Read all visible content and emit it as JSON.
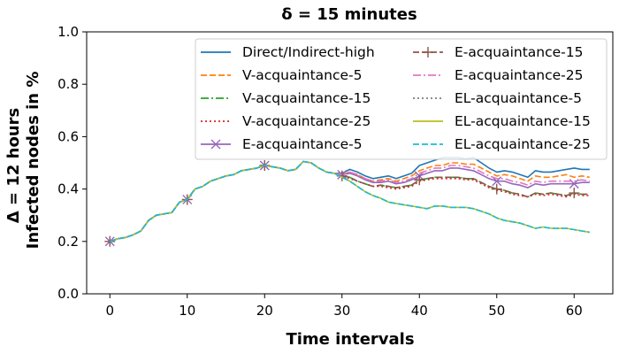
{
  "chart_data": {
    "type": "line",
    "title": "δ = 15 minutes",
    "xlabel": "Time intervals",
    "ylabel_line1": "Δ = 12 hours",
    "ylabel_line2": "Infected nodes in %",
    "xlim": [
      -3,
      65
    ],
    "ylim": [
      0,
      1.0
    ],
    "xticks": [
      0,
      10,
      20,
      30,
      40,
      50,
      60
    ],
    "yticks": [
      0.0,
      0.2,
      0.4,
      0.6,
      0.8,
      1.0
    ],
    "ytick_labels": [
      "0.0",
      "0.2",
      "0.4",
      "0.6",
      "0.8",
      "1.0"
    ],
    "grid": false,
    "legend_position": "top-right",
    "x": [
      0,
      1,
      2,
      3,
      4,
      5,
      6,
      7,
      8,
      9,
      10,
      11,
      12,
      13,
      14,
      15,
      16,
      17,
      18,
      19,
      20,
      21,
      22,
      23,
      24,
      25,
      26,
      27,
      28,
      29,
      30,
      31,
      32,
      33,
      34,
      35,
      36,
      37,
      38,
      39,
      40,
      41,
      42,
      43,
      44,
      45,
      46,
      47,
      48,
      49,
      50,
      51,
      52,
      53,
      54,
      55,
      56,
      57,
      58,
      59,
      60,
      61,
      62
    ],
    "series": [
      {
        "name": "Direct/Indirect-high",
        "color": "#1f77b4",
        "dash": "solid",
        "marker": "none",
        "values": [
          0.2,
          0.21,
          0.215,
          0.225,
          0.24,
          0.28,
          0.3,
          0.305,
          0.31,
          0.35,
          0.36,
          0.4,
          0.41,
          0.43,
          0.44,
          0.45,
          0.455,
          0.47,
          0.475,
          0.48,
          0.49,
          0.485,
          0.48,
          0.47,
          0.475,
          0.505,
          0.5,
          0.48,
          0.465,
          0.46,
          0.46,
          0.475,
          0.465,
          0.45,
          0.44,
          0.445,
          0.45,
          0.44,
          0.45,
          0.46,
          0.49,
          0.5,
          0.51,
          0.52,
          0.52,
          0.52,
          0.515,
          0.52,
          0.5,
          0.48,
          0.465,
          0.47,
          0.465,
          0.455,
          0.445,
          0.47,
          0.465,
          0.465,
          0.47,
          0.475,
          0.48,
          0.475,
          0.475
        ]
      },
      {
        "name": "V-acquaintance-5",
        "color": "#ff7f0e",
        "dash": "dashed",
        "marker": "none",
        "values": [
          0.2,
          0.21,
          0.215,
          0.225,
          0.24,
          0.28,
          0.3,
          0.305,
          0.31,
          0.35,
          0.36,
          0.4,
          0.41,
          0.43,
          0.44,
          0.45,
          0.455,
          0.47,
          0.475,
          0.48,
          0.49,
          0.485,
          0.48,
          0.47,
          0.475,
          0.505,
          0.5,
          0.48,
          0.465,
          0.46,
          0.455,
          0.465,
          0.455,
          0.44,
          0.43,
          0.435,
          0.44,
          0.43,
          0.44,
          0.45,
          0.47,
          0.48,
          0.49,
          0.49,
          0.5,
          0.5,
          0.495,
          0.495,
          0.48,
          0.465,
          0.45,
          0.455,
          0.45,
          0.44,
          0.43,
          0.45,
          0.445,
          0.445,
          0.45,
          0.455,
          0.445,
          0.45,
          0.445
        ]
      },
      {
        "name": "V-acquaintance-15",
        "color": "#2ca02c",
        "dash": "dashdot",
        "marker": "none",
        "values": [
          0.2,
          0.21,
          0.215,
          0.225,
          0.24,
          0.28,
          0.3,
          0.305,
          0.31,
          0.35,
          0.36,
          0.4,
          0.41,
          0.43,
          0.44,
          0.45,
          0.455,
          0.47,
          0.475,
          0.48,
          0.49,
          0.485,
          0.48,
          0.47,
          0.475,
          0.505,
          0.5,
          0.48,
          0.465,
          0.46,
          0.45,
          0.445,
          0.43,
          0.42,
          0.41,
          0.415,
          0.41,
          0.405,
          0.41,
          0.415,
          0.435,
          0.44,
          0.445,
          0.445,
          0.445,
          0.445,
          0.44,
          0.44,
          0.425,
          0.41,
          0.4,
          0.395,
          0.385,
          0.38,
          0.37,
          0.385,
          0.38,
          0.385,
          0.38,
          0.375,
          0.385,
          0.38,
          0.38
        ]
      },
      {
        "name": "V-acquaintance-25",
        "color": "#d62728",
        "dash": "dotted",
        "marker": "none",
        "values": [
          0.2,
          0.21,
          0.215,
          0.225,
          0.24,
          0.28,
          0.3,
          0.305,
          0.31,
          0.35,
          0.36,
          0.4,
          0.41,
          0.43,
          0.44,
          0.45,
          0.455,
          0.47,
          0.475,
          0.48,
          0.49,
          0.485,
          0.48,
          0.47,
          0.475,
          0.505,
          0.5,
          0.48,
          0.465,
          0.46,
          0.45,
          0.44,
          0.43,
          0.42,
          0.41,
          0.41,
          0.405,
          0.4,
          0.405,
          0.41,
          0.43,
          0.435,
          0.44,
          0.44,
          0.44,
          0.44,
          0.435,
          0.435,
          0.42,
          0.405,
          0.395,
          0.39,
          0.38,
          0.375,
          0.37,
          0.38,
          0.375,
          0.38,
          0.375,
          0.37,
          0.38,
          0.375,
          0.375
        ]
      },
      {
        "name": "E-acquaintance-5",
        "color": "#9467bd",
        "dash": "solid",
        "marker": "x",
        "values": [
          0.2,
          0.21,
          0.215,
          0.225,
          0.24,
          0.28,
          0.3,
          0.305,
          0.31,
          0.35,
          0.36,
          0.4,
          0.41,
          0.43,
          0.44,
          0.45,
          0.455,
          0.47,
          0.475,
          0.48,
          0.49,
          0.485,
          0.48,
          0.47,
          0.475,
          0.505,
          0.5,
          0.48,
          0.465,
          0.46,
          0.455,
          0.46,
          0.45,
          0.435,
          0.425,
          0.425,
          0.43,
          0.42,
          0.425,
          0.435,
          0.45,
          0.46,
          0.47,
          0.47,
          0.48,
          0.48,
          0.475,
          0.47,
          0.455,
          0.44,
          0.43,
          0.43,
          0.42,
          0.415,
          0.405,
          0.42,
          0.415,
          0.42,
          0.42,
          0.42,
          0.42,
          0.425,
          0.425
        ]
      },
      {
        "name": "E-acquaintance-15",
        "color": "#8c564b",
        "dash": "dashed",
        "marker": "plus",
        "values": [
          0.2,
          0.21,
          0.215,
          0.225,
          0.24,
          0.28,
          0.3,
          0.305,
          0.31,
          0.35,
          0.36,
          0.4,
          0.41,
          0.43,
          0.44,
          0.45,
          0.455,
          0.47,
          0.475,
          0.48,
          0.49,
          0.485,
          0.48,
          0.47,
          0.475,
          0.505,
          0.5,
          0.48,
          0.465,
          0.46,
          0.45,
          0.445,
          0.43,
          0.42,
          0.41,
          0.415,
          0.41,
          0.405,
          0.41,
          0.415,
          0.435,
          0.44,
          0.445,
          0.445,
          0.445,
          0.445,
          0.44,
          0.44,
          0.425,
          0.41,
          0.4,
          0.395,
          0.385,
          0.38,
          0.37,
          0.385,
          0.38,
          0.385,
          0.38,
          0.375,
          0.385,
          0.38,
          0.38
        ]
      },
      {
        "name": "E-acquaintance-25",
        "color": "#e377c2",
        "dash": "dashdot",
        "marker": "none",
        "values": [
          0.2,
          0.21,
          0.215,
          0.225,
          0.24,
          0.28,
          0.3,
          0.305,
          0.31,
          0.35,
          0.36,
          0.4,
          0.41,
          0.43,
          0.44,
          0.45,
          0.455,
          0.47,
          0.475,
          0.48,
          0.49,
          0.485,
          0.48,
          0.47,
          0.475,
          0.505,
          0.5,
          0.48,
          0.465,
          0.46,
          0.455,
          0.465,
          0.455,
          0.44,
          0.43,
          0.43,
          0.435,
          0.425,
          0.43,
          0.44,
          0.46,
          0.47,
          0.48,
          0.48,
          0.49,
          0.49,
          0.485,
          0.48,
          0.465,
          0.45,
          0.44,
          0.44,
          0.43,
          0.425,
          0.415,
          0.43,
          0.425,
          0.43,
          0.43,
          0.43,
          0.43,
          0.435,
          0.43
        ]
      },
      {
        "name": "EL-acquaintance-5",
        "color": "#7f7f7f",
        "dash": "dotted",
        "marker": "none",
        "values": [
          0.2,
          0.21,
          0.215,
          0.225,
          0.24,
          0.28,
          0.3,
          0.305,
          0.31,
          0.35,
          0.36,
          0.4,
          0.41,
          0.43,
          0.44,
          0.45,
          0.455,
          0.47,
          0.475,
          0.48,
          0.49,
          0.485,
          0.48,
          0.47,
          0.475,
          0.505,
          0.5,
          0.48,
          0.465,
          0.46,
          0.445,
          0.43,
          0.41,
          0.39,
          0.375,
          0.365,
          0.35,
          0.345,
          0.34,
          0.335,
          0.33,
          0.325,
          0.335,
          0.335,
          0.33,
          0.33,
          0.33,
          0.325,
          0.315,
          0.305,
          0.29,
          0.28,
          0.275,
          0.27,
          0.26,
          0.25,
          0.255,
          0.25,
          0.25,
          0.25,
          0.245,
          0.24,
          0.235
        ]
      },
      {
        "name": "EL-acquaintance-15",
        "color": "#bcbd22",
        "dash": "solid",
        "marker": "none",
        "values": [
          0.2,
          0.21,
          0.215,
          0.225,
          0.24,
          0.28,
          0.3,
          0.305,
          0.31,
          0.35,
          0.36,
          0.4,
          0.41,
          0.43,
          0.44,
          0.45,
          0.455,
          0.47,
          0.475,
          0.48,
          0.49,
          0.485,
          0.48,
          0.47,
          0.475,
          0.505,
          0.5,
          0.48,
          0.465,
          0.46,
          0.445,
          0.43,
          0.41,
          0.39,
          0.375,
          0.365,
          0.35,
          0.345,
          0.34,
          0.335,
          0.33,
          0.325,
          0.335,
          0.335,
          0.33,
          0.33,
          0.33,
          0.325,
          0.315,
          0.305,
          0.29,
          0.28,
          0.275,
          0.27,
          0.26,
          0.25,
          0.255,
          0.25,
          0.25,
          0.25,
          0.245,
          0.24,
          0.235
        ]
      },
      {
        "name": "EL-acquaintance-25",
        "color": "#17becf",
        "dash": "dashed",
        "marker": "none",
        "values": [
          0.2,
          0.21,
          0.215,
          0.225,
          0.24,
          0.28,
          0.3,
          0.305,
          0.31,
          0.35,
          0.36,
          0.4,
          0.41,
          0.43,
          0.44,
          0.45,
          0.455,
          0.47,
          0.475,
          0.48,
          0.49,
          0.485,
          0.48,
          0.47,
          0.475,
          0.505,
          0.5,
          0.48,
          0.465,
          0.46,
          0.445,
          0.43,
          0.41,
          0.39,
          0.375,
          0.365,
          0.35,
          0.345,
          0.34,
          0.335,
          0.33,
          0.325,
          0.335,
          0.335,
          0.33,
          0.33,
          0.33,
          0.325,
          0.315,
          0.305,
          0.29,
          0.28,
          0.275,
          0.27,
          0.26,
          0.25,
          0.255,
          0.25,
          0.25,
          0.25,
          0.245,
          0.24,
          0.235
        ]
      }
    ]
  }
}
